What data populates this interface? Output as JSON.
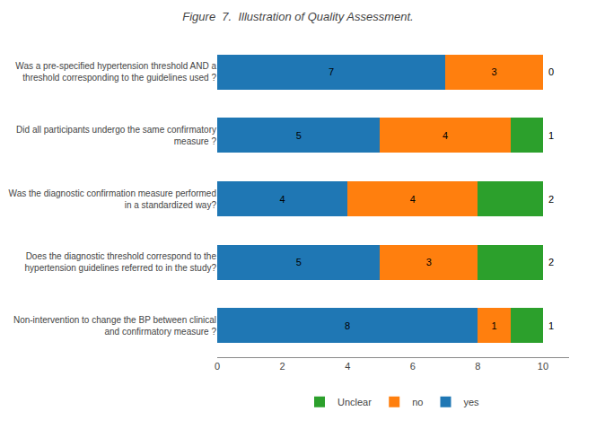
{
  "chart_data": {
    "type": "bar",
    "orientation": "horizontal",
    "stacked": true,
    "title": "Figure  7.  Illustration of Quality Assessment.",
    "categories": [
      "Non-intervention to change the BP between clinical\nand confirmatory measure ?",
      "Does the diagnostic threshold correspond to the\nhypertension guidelines referred to in the study?",
      "Was the diagnostic confirmation measure performed\nin a standardized way?",
      "Did all participants undergo the same confirmatory\nmeasure ?",
      "Was a pre-specified hypertension threshold AND a\nthreshold corresponding to the guidelines used ?"
    ],
    "series": [
      {
        "name": "yes",
        "values": [
          8,
          5,
          4,
          5,
          7
        ]
      },
      {
        "name": "no",
        "values": [
          1,
          3,
          4,
          4,
          3
        ]
      },
      {
        "name": "Unclear",
        "values": [
          1,
          2,
          2,
          1,
          0
        ]
      }
    ],
    "xlim": [
      0,
      10.8
    ],
    "xticks": [
      0,
      2,
      4,
      6,
      8,
      10
    ],
    "grid": false,
    "legend": "bottom",
    "data_labels": true
  }
}
